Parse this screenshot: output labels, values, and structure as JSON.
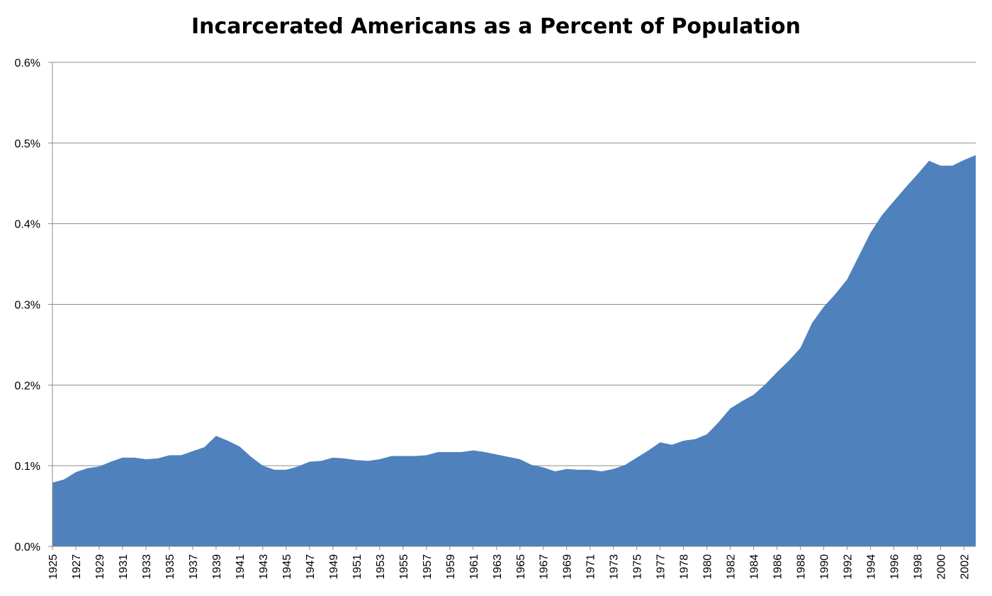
{
  "chart_data": {
    "type": "area",
    "title": "Incarcerated Americans as a Percent of Population",
    "xlabel": "",
    "ylabel": "",
    "ylim": [
      0,
      0.6
    ],
    "y_ticks": [
      "0.0%",
      "0.1%",
      "0.2%",
      "0.3%",
      "0.4%",
      "0.5%",
      "0.6%"
    ],
    "y_tick_values": [
      0,
      0.1,
      0.2,
      0.3,
      0.4,
      0.5,
      0.6
    ],
    "grid": true,
    "legend": "none",
    "series_color": "#4f81bd",
    "categories": [
      "1925",
      "1926",
      "1927",
      "1928",
      "1929",
      "1930",
      "1931",
      "1932",
      "1933",
      "1934",
      "1935",
      "1936",
      "1937",
      "1938",
      "1939",
      "1940",
      "1941",
      "1942",
      "1943",
      "1944",
      "1945",
      "1946",
      "1947",
      "1948",
      "1949",
      "1950",
      "1951",
      "1952",
      "1953",
      "1954",
      "1955",
      "1956",
      "1957",
      "1958",
      "1959",
      "1960",
      "1961",
      "1962",
      "1963",
      "1964",
      "1965",
      "1966",
      "1967",
      "1968",
      "1969",
      "1970",
      "1971",
      "1972",
      "1973",
      "1974",
      "1975",
      "1976",
      "1977",
      "1977",
      "1978",
      "1979",
      "1980",
      "1981",
      "1982",
      "1983",
      "1984",
      "1985",
      "1986",
      "1987",
      "1988",
      "1989",
      "1990",
      "1991",
      "1992",
      "1993",
      "1994",
      "1995",
      "1996",
      "1997",
      "1998",
      "1999",
      "2000",
      "2001",
      "2002",
      "2003"
    ],
    "x_tick_labels": [
      "1925",
      "1927",
      "1929",
      "1931",
      "1933",
      "1935",
      "1937",
      "1939",
      "1941",
      "1943",
      "1945",
      "1947",
      "1949",
      "1951",
      "1953",
      "1955",
      "1957",
      "1959",
      "1961",
      "1963",
      "1965",
      "1967",
      "1969",
      "1971",
      "1973",
      "1975",
      "1977",
      "1978",
      "1980",
      "1982",
      "1984",
      "1986",
      "1988",
      "1990",
      "1992",
      "1994",
      "1996",
      "1998",
      "2000",
      "2002"
    ],
    "series": [
      {
        "values": [
          0.079,
          0.083,
          0.092,
          0.097,
          0.099,
          0.105,
          0.11,
          0.11,
          0.108,
          0.109,
          0.113,
          0.113,
          0.118,
          0.123,
          0.137,
          0.131,
          0.124,
          0.111,
          0.1,
          0.095,
          0.095,
          0.099,
          0.105,
          0.106,
          0.11,
          0.109,
          0.107,
          0.106,
          0.108,
          0.112,
          0.112,
          0.112,
          0.113,
          0.117,
          0.117,
          0.117,
          0.119,
          0.117,
          0.114,
          0.111,
          0.108,
          0.101,
          0.098,
          0.093,
          0.096,
          0.095,
          0.095,
          0.093,
          0.096,
          0.101,
          0.11,
          0.119,
          0.129,
          0.126,
          0.131,
          0.133,
          0.139,
          0.154,
          0.171,
          0.18,
          0.188,
          0.201,
          0.216,
          0.23,
          0.246,
          0.277,
          0.297,
          0.313,
          0.331,
          0.36,
          0.389,
          0.411,
          0.428,
          0.445,
          0.461,
          0.478,
          0.472,
          0.472,
          0.479,
          0.485
        ]
      }
    ]
  }
}
